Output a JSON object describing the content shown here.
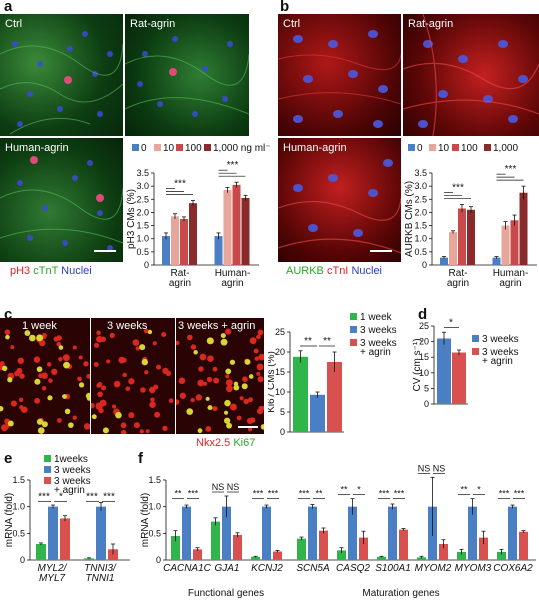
{
  "panels": {
    "a": {
      "label": "a",
      "images": [
        {
          "caption": "Ctrl"
        },
        {
          "caption": "Rat-agrin"
        },
        {
          "caption": "Human-agrin"
        }
      ],
      "stain": [
        {
          "text": "pH3",
          "color": "#e8222a"
        },
        {
          "text": "cTnT",
          "color": "#2aa52a"
        },
        {
          "text": "Nuclei",
          "color": "#2b3bcc"
        }
      ]
    },
    "b": {
      "label": "b",
      "images": [
        {
          "caption": "Ctrl"
        },
        {
          "caption": "Rat-agrin"
        },
        {
          "caption": "Human-agrin"
        }
      ],
      "stain": [
        {
          "text": "AURKB",
          "color": "#2aa52a"
        },
        {
          "text": "cTnI",
          "color": "#e8222a"
        },
        {
          "text": "Nuclei",
          "color": "#2b3bcc"
        }
      ]
    },
    "c": {
      "label": "c",
      "images": [
        {
          "caption": "1 week"
        },
        {
          "caption": "3 weeks"
        },
        {
          "caption": "3 weeks + agrin"
        }
      ],
      "stain": [
        {
          "text": "Nkx2.5",
          "color": "#e8222a"
        },
        {
          "text": "Ki67",
          "color": "#2aa52a"
        }
      ]
    },
    "d": {
      "label": "d"
    },
    "e": {
      "label": "e"
    },
    "f": {
      "label": "f"
    }
  },
  "dose_legend": [
    {
      "label": "0",
      "color": "#4a7fc4"
    },
    {
      "label": "10",
      "color": "#e8a59a"
    },
    {
      "label": "100",
      "color": "#c94a4a"
    },
    {
      "label": "1,000 ng ml⁻¹",
      "color": "#8b2a2a"
    }
  ],
  "dose_legend_b": [
    {
      "label": "0",
      "color": "#4a7fc4"
    },
    {
      "label": "10",
      "color": "#e8a59a"
    },
    {
      "label": "100",
      "color": "#c94a4a"
    },
    {
      "label": "1,000",
      "color": "#8b2a2a"
    }
  ],
  "week_legend": [
    {
      "label": "1 week",
      "color": "#2fb54a"
    },
    {
      "label": "3 weeks",
      "color": "#4a7fc4"
    },
    {
      "label": "3 weeks\n+ agrin",
      "color": "#d9514e"
    }
  ],
  "week_legend_e": [
    {
      "label": "1weeks",
      "color": "#2fb54a"
    },
    {
      "label": "3 weeks",
      "color": "#4a7fc4"
    },
    {
      "label": "3 weeks\n+ agrin",
      "color": "#d9514e"
    }
  ],
  "chart_data": [
    {
      "id": "a",
      "type": "bar",
      "ylabel": "pH3 CMs (%)",
      "ylim": [
        0,
        3.5
      ],
      "yticks": [
        "0",
        "0.5",
        "1.0",
        "1.5",
        "2.0",
        "2.5",
        "3.0",
        "3.5"
      ],
      "categories": [
        "Rat-\nagrin",
        "Human-\nagrin"
      ],
      "series": [
        {
          "name": "0",
          "values": [
            1.1,
            1.1
          ],
          "err": [
            0.12,
            0.12
          ]
        },
        {
          "name": "10",
          "values": [
            1.85,
            2.85
          ],
          "err": [
            0.1,
            0.1
          ]
        },
        {
          "name": "100",
          "values": [
            1.75,
            3.05
          ],
          "err": [
            0.08,
            0.1
          ]
        },
        {
          "name": "1,000 ng ml⁻¹",
          "values": [
            2.35,
            2.55
          ],
          "err": [
            0.1,
            0.1
          ]
        }
      ],
      "significance": [
        "***",
        "***"
      ]
    },
    {
      "id": "b",
      "type": "bar",
      "ylabel": "AURKB CMs (%)",
      "ylim": [
        0,
        3.5
      ],
      "yticks": [
        "0",
        "0.5",
        "1.0",
        "1.5",
        "2.0",
        "2.5",
        "3.0",
        "3.5"
      ],
      "categories": [
        "Rat-\nagrin",
        "Human-\nagrin"
      ],
      "series": [
        {
          "name": "0",
          "values": [
            0.28,
            0.28
          ],
          "err": [
            0.04,
            0.04
          ]
        },
        {
          "name": "10",
          "values": [
            1.25,
            1.5
          ],
          "err": [
            0.05,
            0.15
          ]
        },
        {
          "name": "100",
          "values": [
            2.15,
            1.7
          ],
          "err": [
            0.15,
            0.2
          ]
        },
        {
          "name": "1,000",
          "values": [
            2.1,
            2.75
          ],
          "err": [
            0.12,
            0.25
          ]
        }
      ],
      "significance": [
        "***",
        "***"
      ]
    },
    {
      "id": "c",
      "type": "bar",
      "ylabel": "Ki67 CMs (%)",
      "ylim": [
        0,
        25
      ],
      "yticks": [
        "0",
        "5",
        "10",
        "15",
        "20",
        "25"
      ],
      "categories": [
        "1 week",
        "3 weeks",
        "3 weeks + agrin"
      ],
      "values": [
        18.8,
        9.3,
        17.5
      ],
      "err": [
        1.5,
        0.7,
        2.5
      ],
      "significance": [
        "**",
        "**"
      ]
    },
    {
      "id": "d",
      "type": "bar",
      "ylabel": "CV (cm s⁻¹)",
      "ylim": [
        0,
        25
      ],
      "yticks": [
        "0",
        "5",
        "10",
        "15",
        "20",
        "25"
      ],
      "categories": [
        "3 weeks",
        "3 weeks + agrin"
      ],
      "values": [
        21,
        16.5
      ],
      "err": [
        2,
        0.8
      ],
      "significance": [
        "*"
      ]
    },
    {
      "id": "e",
      "type": "bar",
      "ylabel": "mRNA (fold)",
      "ylim": [
        0,
        1.5
      ],
      "yticks": [
        "0",
        "0.5",
        "1.0",
        "1.5"
      ],
      "categories": [
        "MYL2/\nMYL7",
        "TNNI3/\nTNNI1"
      ],
      "series": [
        {
          "name": "1weeks",
          "values": [
            0.3,
            0.03
          ],
          "err": [
            0.02,
            0.01
          ]
        },
        {
          "name": "3 weeks",
          "values": [
            1.0,
            1.0
          ],
          "err": [
            0.03,
            0.08
          ]
        },
        {
          "name": "3 weeks + agrin",
          "values": [
            0.78,
            0.2
          ],
          "err": [
            0.05,
            0.1
          ]
        }
      ],
      "significance": [
        "***",
        "*",
        "***",
        "***"
      ]
    },
    {
      "id": "f",
      "type": "bar",
      "ylabel": "mRNA (fold)",
      "ylim": [
        0,
        1.5
      ],
      "yticks": [
        "0",
        "0.5",
        "1.0",
        "1.5"
      ],
      "categories": [
        "CACNA1C",
        "GJA1",
        "KCNJ2",
        "SCN5A",
        "CASQ2",
        "S100A1",
        "MYOM2",
        "MYOM3",
        "COX6A2"
      ],
      "series": [
        {
          "name": "1 week",
          "values": [
            0.45,
            0.72,
            0.06,
            0.4,
            0.18,
            0.06,
            0.05,
            0.15,
            0.15
          ],
          "err": [
            0.1,
            0.07,
            0.01,
            0.03,
            0.05,
            0.01,
            0.02,
            0.05,
            0.05
          ]
        },
        {
          "name": "3 weeks",
          "values": [
            1.0,
            1.0,
            1.0,
            1.0,
            1.0,
            1.0,
            1.0,
            1.0,
            1.0
          ],
          "err": [
            0.03,
            0.2,
            0.03,
            0.04,
            0.15,
            0.05,
            0.55,
            0.15,
            0.03
          ]
        },
        {
          "name": "3 weeks + agrin",
          "values": [
            0.2,
            0.47,
            0.16,
            0.55,
            0.42,
            0.57,
            0.3,
            0.42,
            0.53
          ],
          "err": [
            0.03,
            0.04,
            0.02,
            0.05,
            0.12,
            0.02,
            0.08,
            0.12,
            0.02
          ]
        }
      ],
      "significance": [
        [
          "**",
          "***"
        ],
        [
          "NS",
          "NS"
        ],
        [
          "***",
          "***"
        ],
        [
          "***",
          "**"
        ],
        [
          "**",
          "*"
        ],
        [
          "***",
          "***"
        ],
        [
          "NS",
          "NS"
        ],
        [
          "**",
          "*"
        ],
        [
          "***",
          "***"
        ]
      ],
      "group_labels": [
        "Functional genes",
        "Maturation genes"
      ]
    }
  ]
}
